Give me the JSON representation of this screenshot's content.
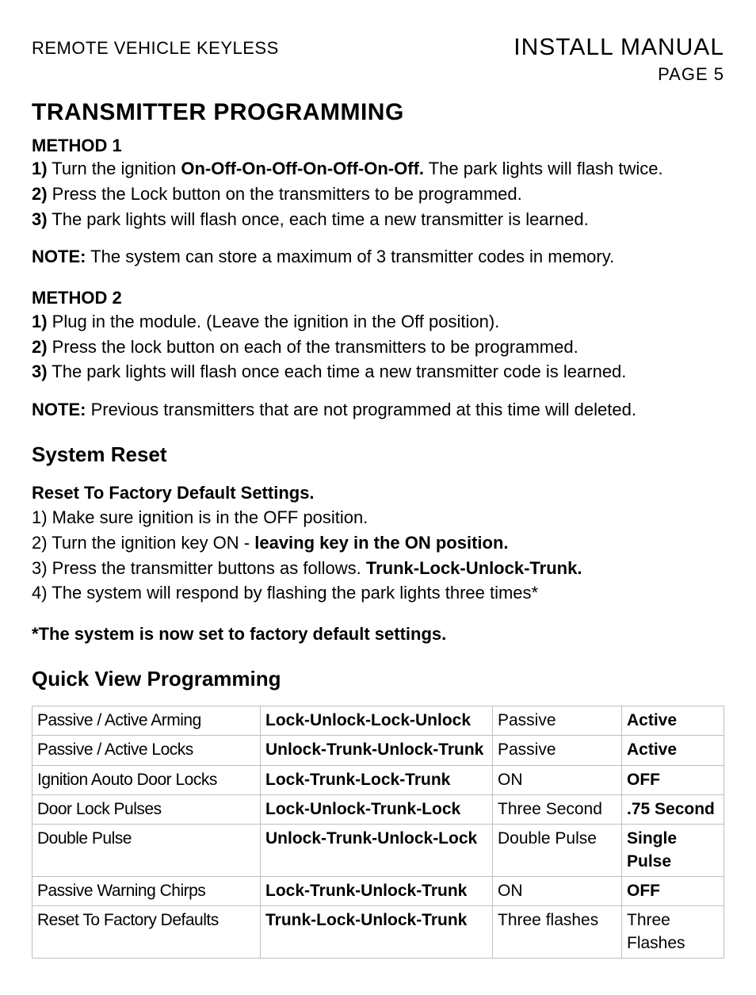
{
  "header": {
    "left": "REMOTE VEHICLE KEYLESS",
    "right_title": "INSTALL  MANUAL",
    "page_label": "PAGE 5"
  },
  "title": "TRANSMITTER PROGRAMMING",
  "method1": {
    "label": "METHOD 1",
    "step1_prefix": "1)",
    "step1_a": " Turn the ignition ",
    "step1_bold": "On-Off-On-Off-On-Off-On-Off.",
    "step1_b": " The park lights will flash twice.",
    "step2_prefix": "2)",
    "step2": " Press the Lock button on the transmitters to be programmed.",
    "step3_prefix": "3)",
    "step3": " The park lights will flash once, each time a new transmitter is learned.",
    "note_label": "NOTE:",
    "note_text": " The system can store a maximum of 3 transmitter codes in memory."
  },
  "method2": {
    "label": "METHOD 2",
    "step1_prefix": "1)",
    "step1": " Plug in the module. (Leave the ignition in the Off position).",
    "step2_prefix": "2)",
    "step2": " Press the lock button on each of the transmitters to be programmed.",
    "step3_prefix": "3)",
    "step3": " The park lights will flash once each time a new transmitter code is learned.",
    "note_label": "NOTE:",
    "note_text": " Previous transmitters that are not programmed at this time will deleted."
  },
  "reset": {
    "heading": "System Reset",
    "subhead": "Reset To Factory Default Settings.",
    "step1": "1)   Make sure  ignition is in the OFF position.",
    "step2a": "2)  Turn the ignition key ON -  ",
    "step2b": "leaving key in the ON position.",
    "step3a": "3)  Press the transmitter buttons as follows. ",
    "step3b": "Trunk-Lock-Unlock-Trunk.",
    "step4": "4) The system will respond by flashing the park lights three times*",
    "footnote": "*The system is now set to factory default settings."
  },
  "quick": {
    "heading": "Quick View Programming",
    "rows": [
      {
        "c1": "Passive / Active Arming",
        "c2": "Lock-Unlock-Lock-Unlock",
        "c3": "Passive",
        "c4": "Active",
        "c4_bold": true
      },
      {
        "c1": "Passive / Active Locks",
        "c2": "Unlock-Trunk-Unlock-Trunk",
        "c3": "Passive",
        "c4": "Active",
        "c4_bold": true
      },
      {
        "c1": "Ignition Aouto Door Locks",
        "c2": "Lock-Trunk-Lock-Trunk",
        "c3": "ON",
        "c4": "OFF",
        "c4_bold": true
      },
      {
        "c1": "Door Lock Pulses",
        "c2": "Lock-Unlock-Trunk-Lock",
        "c3": "Three Second",
        "c4": ".75 Second",
        "c4_bold": true
      },
      {
        "c1": "Double Pulse",
        "c2": "Unlock-Trunk-Unlock-Lock",
        "c3": "Double Pulse",
        "c4": "Single Pulse",
        "c4_bold": true
      },
      {
        "c1": "Passive Warning Chirps",
        "c2": "Lock-Trunk-Unlock-Trunk",
        "c3": "ON",
        "c4": "OFF",
        "c4_bold": true
      },
      {
        "c1": "Reset To Factory Defaults",
        "c2": "Trunk-Lock-Unlock-Trunk",
        "c3": "Three flashes",
        "c4": "Three Flashes",
        "c4_bold": false
      }
    ]
  }
}
